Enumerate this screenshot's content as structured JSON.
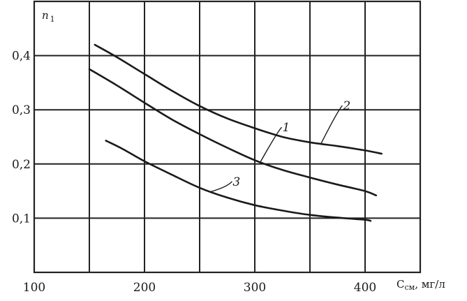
{
  "chart_data": {
    "type": "line",
    "title": "",
    "ylabel": "n",
    "ylabel_sub": "1",
    "xlabel": "C",
    "xlabel_sub": "см",
    "xlabel_unit": ", мг/л",
    "xlim": [
      100,
      450
    ],
    "ylim": [
      0,
      0.5
    ],
    "x_ticks": [
      100,
      150,
      200,
      250,
      300,
      350,
      400,
      450
    ],
    "x_tick_labels": [
      "100",
      "200",
      "300",
      "400"
    ],
    "x_tick_label_values": [
      100,
      200,
      300,
      400
    ],
    "y_ticks": [
      0,
      0.1,
      0.2,
      0.3,
      0.4,
      0.5
    ],
    "y_tick_labels": [
      "0,1",
      "0,2",
      "0,3",
      "0,4"
    ],
    "y_tick_label_values": [
      0.1,
      0.2,
      0.3,
      0.4
    ],
    "grid": true,
    "series": [
      {
        "name": "1",
        "x": [
          150,
          175,
          200,
          225,
          250,
          275,
          300,
          325,
          350,
          375,
          400,
          410
        ],
        "values": [
          0.375,
          0.345,
          0.313,
          0.282,
          0.255,
          0.23,
          0.207,
          0.189,
          0.175,
          0.162,
          0.15,
          0.142
        ],
        "label_at": [
          325,
          0.26
        ]
      },
      {
        "name": "2",
        "x": [
          155,
          175,
          200,
          225,
          250,
          275,
          300,
          325,
          350,
          375,
          400,
          415
        ],
        "values": [
          0.42,
          0.397,
          0.366,
          0.335,
          0.307,
          0.284,
          0.266,
          0.25,
          0.24,
          0.233,
          0.225,
          0.219
        ],
        "label_at": [
          380,
          0.3
        ]
      },
      {
        "name": "3",
        "x": [
          165,
          180,
          200,
          225,
          250,
          275,
          300,
          325,
          350,
          375,
          400,
          405
        ],
        "values": [
          0.243,
          0.228,
          0.205,
          0.18,
          0.156,
          0.138,
          0.124,
          0.114,
          0.106,
          0.101,
          0.097,
          0.095
        ],
        "label_at": [
          280,
          0.16
        ]
      }
    ]
  }
}
